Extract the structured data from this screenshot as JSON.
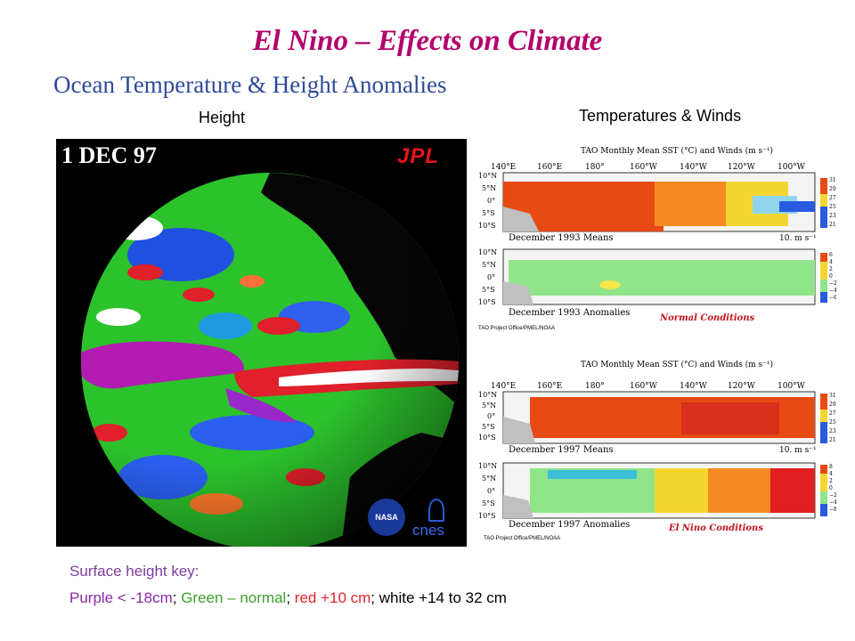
{
  "title": "El Nino – Effects on Climate",
  "subtitle": "Ocean Temperature & Height Anomalies",
  "height_label": "Height",
  "temps_label": "Temperatures & Winds",
  "globe": {
    "date": "1 DEC 97",
    "jpl_logo": "JPL",
    "nasa_logo": "NASA",
    "cnes_logo": "cnes"
  },
  "tao_panels": [
    {
      "header": "TAO Monthly Mean SST (°C) and Winds (m s⁻¹)",
      "lon_labels": [
        "140°E",
        "160°E",
        "180°",
        "160°W",
        "140°W",
        "120°W",
        "100°W"
      ],
      "lat_labels": [
        "10°N",
        "5°N",
        "0°",
        "5°S",
        "10°S"
      ],
      "means_caption": "December 1993 Means",
      "anom_caption": "December 1993 Anomalies",
      "scale_label": "10.  m s⁻¹",
      "sst_scale": [
        "31",
        "29",
        "27",
        "25",
        "23",
        "21"
      ],
      "anom_scale": [
        "6",
        "4",
        "2",
        "0",
        "−2",
        "−4",
        "−6"
      ],
      "condition": "Normal Conditions",
      "credit": "TAO Project Office/PMEL/NOAA"
    },
    {
      "header": "TAO Monthly Mean SST (°C) and Winds (m s⁻¹)",
      "lon_labels": [
        "140°E",
        "160°E",
        "180°",
        "160°W",
        "140°W",
        "120°W",
        "100°W"
      ],
      "lat_labels": [
        "10°N",
        "5°N",
        "0°",
        "5°S",
        "10°S"
      ],
      "means_caption": "December 1997 Means",
      "anom_caption": "December 1997 Anomalies",
      "scale_label": "10.  m s⁻¹",
      "sst_scale": [
        "31",
        "29",
        "27",
        "25",
        "23",
        "21"
      ],
      "anom_scale": [
        "8",
        "4",
        "2",
        "0",
        "−2",
        "−4",
        "−8"
      ],
      "condition": "El Nino Conditions",
      "credit": "TAO Project Office/PMEL/NOAA"
    }
  ],
  "key": {
    "heading": "Surface height key:",
    "purple": "Purple < -18cm",
    "sep1": "; ",
    "green": "Green – normal",
    "sep2": "; ",
    "red": "red +10 cm",
    "sep3": "; ",
    "white": "white +14 to 32 cm"
  },
  "colors": {
    "title": "#b3006b",
    "subtitle": "#2e4a9a",
    "purple": "#8b2aa8",
    "green": "#3ea02e",
    "red": "#e0242a",
    "condition": "#c0141c"
  }
}
